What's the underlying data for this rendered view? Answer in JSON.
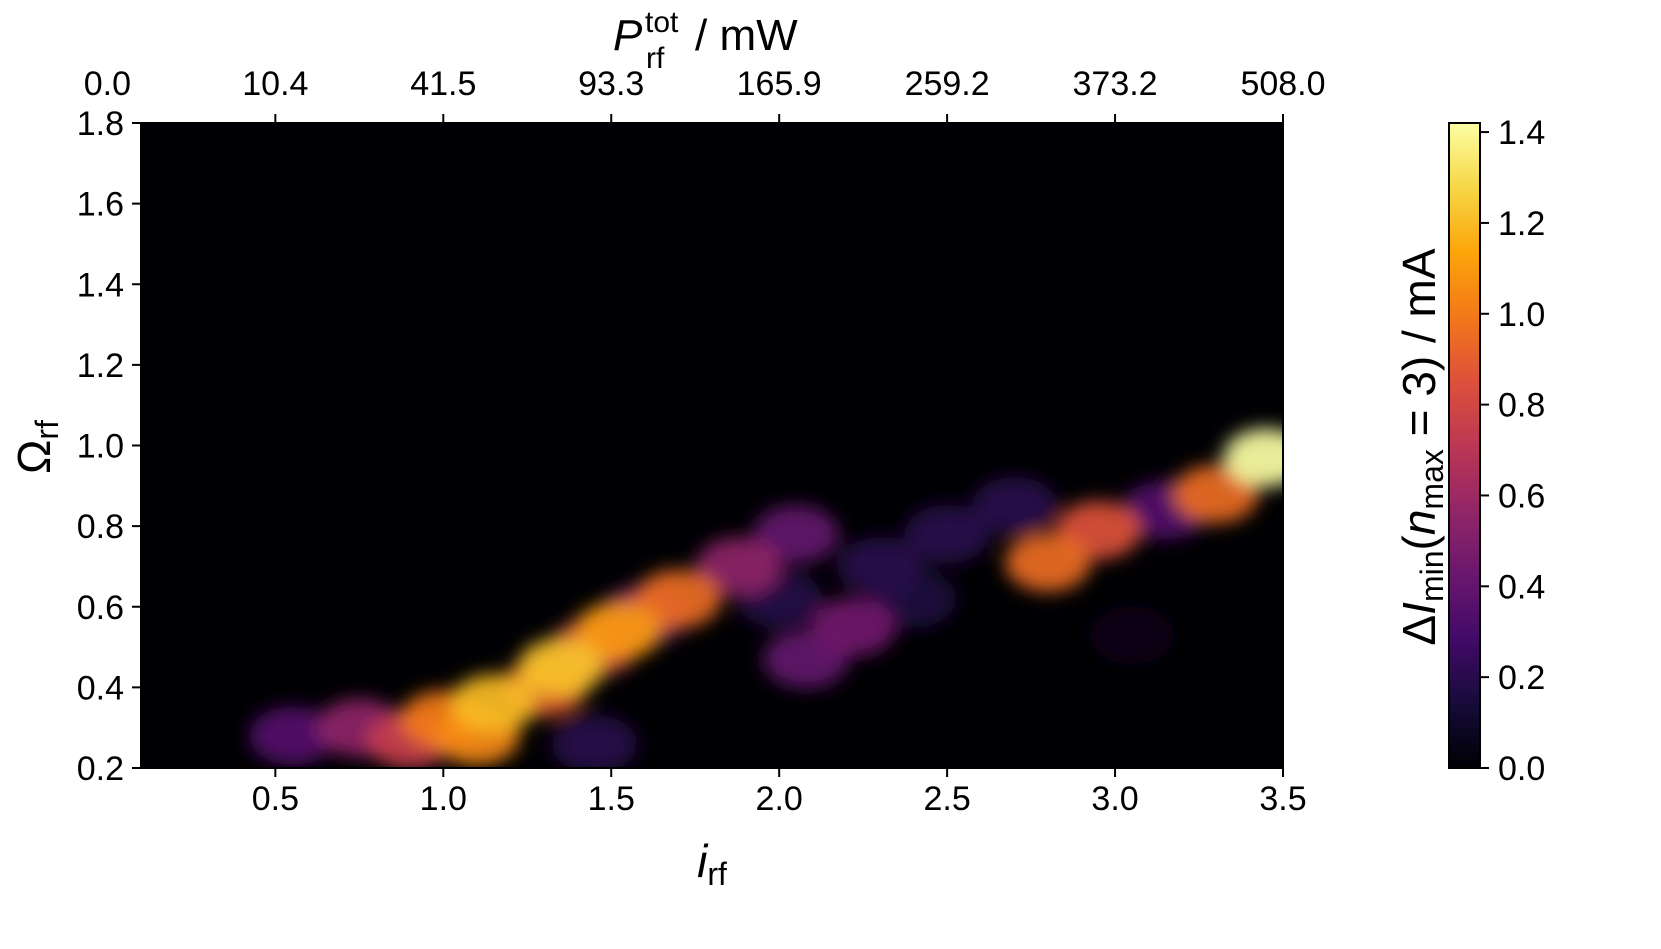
{
  "chart_data": {
    "type": "heatmap",
    "colormap": "inferno",
    "xlabel": {
      "main": "i",
      "sub": "rf"
    },
    "ylabel": {
      "main": "Ω",
      "sub": "rf"
    },
    "top_xlabel": {
      "main": "P",
      "sup": "tot",
      "sub": "rf",
      "unit": "/ mW"
    },
    "colorbar_label": {
      "delta": "Δ",
      "I": "I",
      "sub_min": "min",
      "paren_open": "(",
      "n": "n",
      "sub_max": "max",
      "rest": " = 3) / mA"
    },
    "xlim": [
      0.1,
      3.5
    ],
    "ylim": [
      0.2,
      1.8
    ],
    "clim": [
      0.0,
      1.42
    ],
    "x_ticks": [
      0.5,
      1.0,
      1.5,
      2.0,
      2.5,
      3.0,
      3.5
    ],
    "x_tick_labels": [
      "0.5",
      "1.0",
      "1.5",
      "2.0",
      "2.5",
      "3.0",
      "3.5"
    ],
    "y_ticks": [
      0.2,
      0.4,
      0.6,
      0.8,
      1.0,
      1.2,
      1.4,
      1.6,
      1.8
    ],
    "y_tick_labels": [
      "0.2",
      "0.4",
      "0.6",
      "0.8",
      "1.0",
      "1.2",
      "1.4",
      "1.6",
      "1.8"
    ],
    "top_ticks_i": [
      0.0,
      0.5,
      1.0,
      1.5,
      2.0,
      2.5,
      3.0,
      3.5
    ],
    "top_tick_labels": [
      "0.0",
      "10.4",
      "41.5",
      "93.3",
      "165.9",
      "259.2",
      "373.2",
      "508.0"
    ],
    "colorbar_ticks": [
      0.0,
      0.2,
      0.4,
      0.6,
      0.8,
      1.0,
      1.2,
      1.4
    ],
    "colorbar_tick_labels": [
      "0.0",
      "0.2",
      "0.4",
      "0.6",
      "0.8",
      "1.0",
      "1.2",
      "1.4"
    ],
    "points": [
      {
        "x": 0.55,
        "y": 0.28,
        "v": 0.35
      },
      {
        "x": 0.75,
        "y": 0.3,
        "v": 0.55
      },
      {
        "x": 0.9,
        "y": 0.27,
        "v": 0.75
      },
      {
        "x": 1.0,
        "y": 0.32,
        "v": 1.0
      },
      {
        "x": 1.1,
        "y": 0.28,
        "v": 1.05
      },
      {
        "x": 1.15,
        "y": 0.36,
        "v": 1.2
      },
      {
        "x": 1.3,
        "y": 0.4,
        "v": 0.9
      },
      {
        "x": 1.35,
        "y": 0.45,
        "v": 1.22
      },
      {
        "x": 1.45,
        "y": 0.5,
        "v": 0.8
      },
      {
        "x": 1.52,
        "y": 0.54,
        "v": 1.1
      },
      {
        "x": 1.6,
        "y": 0.58,
        "v": 0.6
      },
      {
        "x": 1.7,
        "y": 0.62,
        "v": 0.95
      },
      {
        "x": 1.45,
        "y": 0.26,
        "v": 0.2
      },
      {
        "x": 1.88,
        "y": 0.7,
        "v": 0.55
      },
      {
        "x": 2.05,
        "y": 0.78,
        "v": 0.4
      },
      {
        "x": 2.08,
        "y": 0.47,
        "v": 0.4
      },
      {
        "x": 2.22,
        "y": 0.55,
        "v": 0.45
      },
      {
        "x": 2.0,
        "y": 0.62,
        "v": 0.18
      },
      {
        "x": 2.3,
        "y": 0.7,
        "v": 0.2
      },
      {
        "x": 2.5,
        "y": 0.78,
        "v": 0.2
      },
      {
        "x": 2.7,
        "y": 0.85,
        "v": 0.2
      },
      {
        "x": 2.4,
        "y": 0.62,
        "v": 0.16
      },
      {
        "x": 2.8,
        "y": 0.71,
        "v": 0.95
      },
      {
        "x": 2.95,
        "y": 0.79,
        "v": 0.85
      },
      {
        "x": 3.15,
        "y": 0.84,
        "v": 0.35
      },
      {
        "x": 3.3,
        "y": 0.88,
        "v": 0.95
      },
      {
        "x": 3.45,
        "y": 0.97,
        "v": 1.42
      },
      {
        "x": 3.05,
        "y": 0.53,
        "v": 0.05
      }
    ]
  }
}
